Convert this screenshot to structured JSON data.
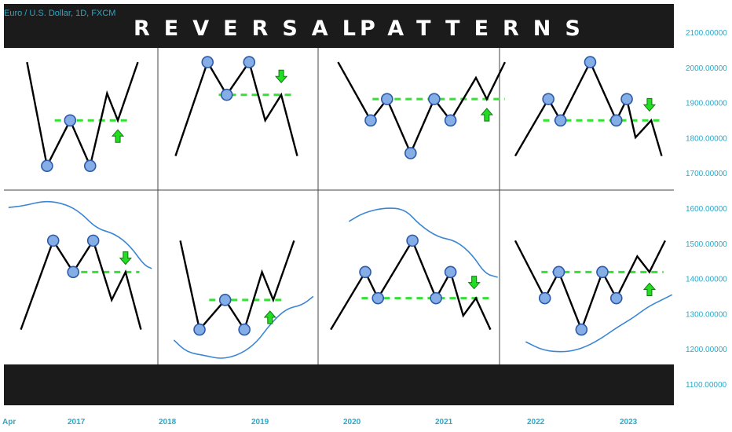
{
  "header": {
    "symbol": "Euro / U.S. Dollar, 1D, FXCM",
    "title_left": "REVERSAL",
    "title_right": "PATTERNS"
  },
  "colors": {
    "background": "#ffffff",
    "banner": "#1b1b1b",
    "price_line": "#000000",
    "support_resistance": "#33e033",
    "marker_fill": "#86aee6",
    "marker_stroke": "#2d5aa8",
    "arrow": "#22dd22",
    "channel": "#3a86d4",
    "axis_text": "#2aa8c8"
  },
  "chart_data": {
    "type": "line",
    "y_axis": {
      "ticks": [
        "2100.00000",
        "2000.00000",
        "1900.00000",
        "1800.00000",
        "1700.00000",
        "1600.00000",
        "1500.00000",
        "1400.00000",
        "1300.00000",
        "1200.00000",
        "1100.00000"
      ]
    },
    "x_axis": {
      "ticks": [
        "Apr",
        "2017",
        "2018",
        "2019",
        "2020",
        "2021",
        "2022",
        "2023"
      ]
    },
    "panels": [
      {
        "row": 0,
        "col": 0,
        "line": [
          [
            0.15,
            0.1
          ],
          [
            0.28,
            0.83
          ],
          [
            0.43,
            0.51
          ],
          [
            0.56,
            0.83
          ],
          [
            0.67,
            0.32
          ],
          [
            0.74,
            0.51
          ],
          [
            0.87,
            0.1
          ]
        ],
        "circles": [
          [
            0.28,
            0.83
          ],
          [
            0.43,
            0.51
          ],
          [
            0.56,
            0.83
          ]
        ],
        "dash": {
          "y": 0.51,
          "x1": 0.33,
          "x2": 0.82
        },
        "arrow": {
          "x": 0.74,
          "y": 0.62,
          "dir": "up"
        }
      },
      {
        "row": 0,
        "col": 1,
        "line": [
          [
            0.11,
            0.76
          ],
          [
            0.31,
            0.1
          ],
          [
            0.43,
            0.33
          ],
          [
            0.57,
            0.1
          ],
          [
            0.67,
            0.51
          ],
          [
            0.77,
            0.33
          ],
          [
            0.87,
            0.76
          ]
        ],
        "circles": [
          [
            0.31,
            0.1
          ],
          [
            0.43,
            0.33
          ],
          [
            0.57,
            0.1
          ]
        ],
        "dash": {
          "y": 0.33,
          "x1": 0.38,
          "x2": 0.85
        },
        "arrow": {
          "x": 0.77,
          "y": 0.2,
          "dir": "down"
        }
      },
      {
        "row": 0,
        "col": 2,
        "line": [
          [
            0.11,
            0.1
          ],
          [
            0.29,
            0.51
          ],
          [
            0.38,
            0.36
          ],
          [
            0.51,
            0.74
          ],
          [
            0.64,
            0.36
          ],
          [
            0.73,
            0.51
          ],
          [
            0.87,
            0.21
          ],
          [
            0.93,
            0.36
          ],
          [
            1.03,
            0.1
          ]
        ],
        "circles": [
          [
            0.29,
            0.51
          ],
          [
            0.38,
            0.36
          ],
          [
            0.51,
            0.74
          ],
          [
            0.64,
            0.36
          ],
          [
            0.73,
            0.51
          ]
        ],
        "dash": {
          "y": 0.36,
          "x1": 0.3,
          "x2": 1.03
        },
        "arrow": {
          "x": 0.93,
          "y": 0.47,
          "dir": "up"
        }
      },
      {
        "row": 0,
        "col": 3,
        "line": [
          [
            0.09,
            0.76
          ],
          [
            0.28,
            0.36
          ],
          [
            0.35,
            0.51
          ],
          [
            0.52,
            0.1
          ],
          [
            0.67,
            0.51
          ],
          [
            0.73,
            0.36
          ],
          [
            0.78,
            0.63
          ],
          [
            0.87,
            0.51
          ],
          [
            0.93,
            0.76
          ]
        ],
        "circles": [
          [
            0.28,
            0.36
          ],
          [
            0.35,
            0.51
          ],
          [
            0.52,
            0.1
          ],
          [
            0.67,
            0.51
          ],
          [
            0.73,
            0.36
          ]
        ],
        "dash": {
          "y": 0.51,
          "x1": 0.25,
          "x2": 0.92
        },
        "arrow": {
          "x": 0.86,
          "y": 0.4,
          "dir": "down"
        }
      },
      {
        "row": 1,
        "col": 0,
        "line": [
          [
            0.11,
            0.8
          ],
          [
            0.32,
            0.29
          ],
          [
            0.45,
            0.47
          ],
          [
            0.58,
            0.29
          ],
          [
            0.7,
            0.63
          ],
          [
            0.79,
            0.47
          ],
          [
            0.89,
            0.8
          ]
        ],
        "circles": [
          [
            0.32,
            0.29
          ],
          [
            0.45,
            0.47
          ],
          [
            0.58,
            0.29
          ]
        ],
        "dash": {
          "y": 0.47,
          "x1": 0.43,
          "x2": 0.88
        },
        "arrow": {
          "x": 0.79,
          "y": 0.39,
          "dir": "down"
        },
        "channel": [
          [
            0.03,
            0.1
          ],
          [
            0.13,
            0.09
          ],
          [
            0.27,
            0.06
          ],
          [
            0.4,
            0.08
          ],
          [
            0.5,
            0.13
          ],
          [
            0.6,
            0.22
          ],
          [
            0.72,
            0.25
          ],
          [
            0.82,
            0.32
          ],
          [
            0.91,
            0.43
          ],
          [
            0.96,
            0.45
          ]
        ]
      },
      {
        "row": 1,
        "col": 1,
        "line": [
          [
            0.14,
            0.29
          ],
          [
            0.26,
            0.8
          ],
          [
            0.42,
            0.63
          ],
          [
            0.54,
            0.8
          ],
          [
            0.65,
            0.47
          ],
          [
            0.72,
            0.63
          ],
          [
            0.85,
            0.29
          ]
        ],
        "circles": [
          [
            0.26,
            0.8
          ],
          [
            0.42,
            0.63
          ],
          [
            0.54,
            0.8
          ]
        ],
        "dash": {
          "y": 0.63,
          "x1": 0.32,
          "x2": 0.8
        },
        "arrow": {
          "x": 0.7,
          "y": 0.73,
          "dir": "up"
        },
        "channel": [
          [
            0.1,
            0.86
          ],
          [
            0.18,
            0.93
          ],
          [
            0.3,
            0.95
          ],
          [
            0.4,
            0.97
          ],
          [
            0.52,
            0.94
          ],
          [
            0.62,
            0.87
          ],
          [
            0.7,
            0.77
          ],
          [
            0.8,
            0.68
          ],
          [
            0.9,
            0.66
          ],
          [
            0.97,
            0.61
          ]
        ]
      },
      {
        "row": 1,
        "col": 2,
        "line": [
          [
            0.07,
            0.8
          ],
          [
            0.26,
            0.47
          ],
          [
            0.33,
            0.62
          ],
          [
            0.52,
            0.29
          ],
          [
            0.65,
            0.62
          ],
          [
            0.73,
            0.47
          ],
          [
            0.8,
            0.72
          ],
          [
            0.87,
            0.62
          ],
          [
            0.95,
            0.8
          ]
        ],
        "circles": [
          [
            0.26,
            0.47
          ],
          [
            0.33,
            0.62
          ],
          [
            0.52,
            0.29
          ],
          [
            0.65,
            0.62
          ],
          [
            0.73,
            0.47
          ]
        ],
        "dash": {
          "y": 0.62,
          "x1": 0.24,
          "x2": 0.96
        },
        "arrow": {
          "x": 0.86,
          "y": 0.53,
          "dir": "down"
        },
        "channel": [
          [
            0.17,
            0.18
          ],
          [
            0.25,
            0.13
          ],
          [
            0.37,
            0.1
          ],
          [
            0.48,
            0.11
          ],
          [
            0.56,
            0.2
          ],
          [
            0.66,
            0.27
          ],
          [
            0.76,
            0.29
          ],
          [
            0.85,
            0.37
          ],
          [
            0.92,
            0.48
          ],
          [
            0.99,
            0.5
          ]
        ]
      },
      {
        "row": 1,
        "col": 3,
        "line": [
          [
            0.09,
            0.29
          ],
          [
            0.26,
            0.62
          ],
          [
            0.34,
            0.47
          ],
          [
            0.47,
            0.8
          ],
          [
            0.59,
            0.47
          ],
          [
            0.67,
            0.62
          ],
          [
            0.79,
            0.38
          ],
          [
            0.86,
            0.47
          ],
          [
            0.95,
            0.29
          ]
        ],
        "circles": [
          [
            0.26,
            0.62
          ],
          [
            0.34,
            0.47
          ],
          [
            0.47,
            0.8
          ],
          [
            0.59,
            0.47
          ],
          [
            0.67,
            0.62
          ]
        ],
        "dash": {
          "y": 0.47,
          "x1": 0.24,
          "x2": 0.94
        },
        "arrow": {
          "x": 0.86,
          "y": 0.57,
          "dir": "up"
        },
        "channel": [
          [
            0.15,
            0.87
          ],
          [
            0.25,
            0.92
          ],
          [
            0.37,
            0.93
          ],
          [
            0.47,
            0.91
          ],
          [
            0.57,
            0.86
          ],
          [
            0.67,
            0.79
          ],
          [
            0.77,
            0.73
          ],
          [
            0.85,
            0.67
          ],
          [
            0.93,
            0.63
          ],
          [
            0.99,
            0.6
          ]
        ]
      }
    ]
  }
}
